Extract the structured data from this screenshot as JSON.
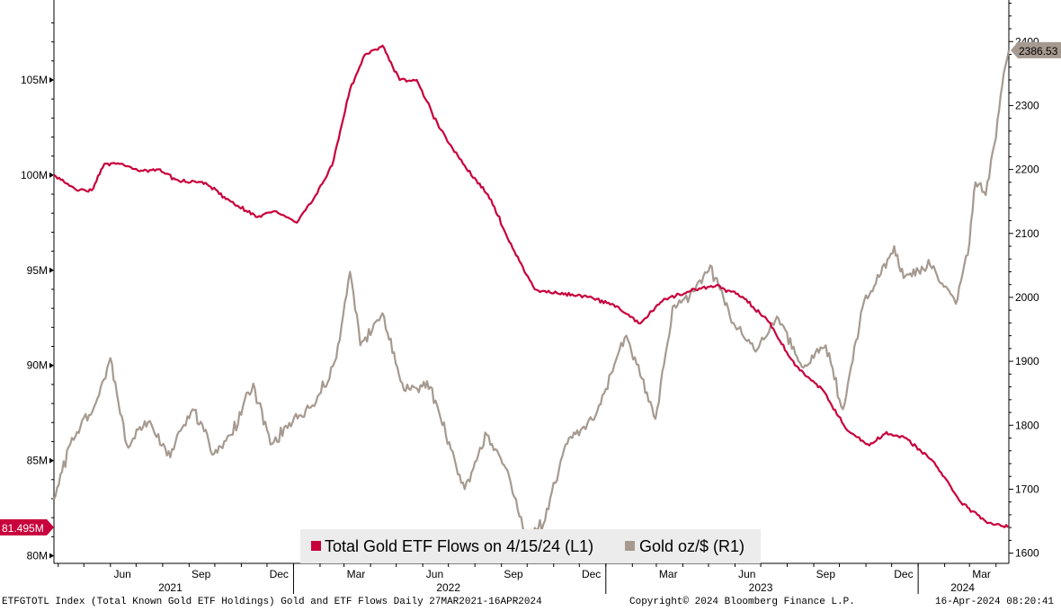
{
  "chart_data": {
    "type": "line",
    "x_range": [
      "2021-03-27",
      "2024-04-16"
    ],
    "x_month_ticks": [
      "Jun",
      "Sep",
      "Dec",
      "Mar",
      "Jun",
      "Sep",
      "Dec",
      "Mar",
      "Jun",
      "Sep",
      "Dec",
      "Mar"
    ],
    "x_year_labels": [
      "2021",
      "2022",
      "2023",
      "2024"
    ],
    "y_left": {
      "ticks": [
        "80M",
        "85M",
        "90M",
        "95M",
        "100M",
        "105M"
      ],
      "ylim": [
        79.6,
        109.2
      ]
    },
    "y_right": {
      "ticks": [
        "1600",
        "1700",
        "1800",
        "1900",
        "2000",
        "2100",
        "2200",
        "2300",
        "2400"
      ],
      "ylim": [
        1584,
        2465
      ]
    },
    "series": [
      {
        "name": "Total Gold ETF Flows on 4/15/24 (L1)",
        "axis": "left",
        "color": "#c8003c",
        "last_value_label": "81.495M",
        "points": [
          [
            "2021-03-27",
            100.0
          ],
          [
            "2021-04-20",
            99.3
          ],
          [
            "2021-05-10",
            99.2
          ],
          [
            "2021-05-25",
            100.6
          ],
          [
            "2021-06-15",
            100.6
          ],
          [
            "2021-07-05",
            100.2
          ],
          [
            "2021-07-25",
            100.3
          ],
          [
            "2021-08-20",
            99.7
          ],
          [
            "2021-09-20",
            99.6
          ],
          [
            "2021-10-20",
            98.6
          ],
          [
            "2021-11-20",
            97.8
          ],
          [
            "2021-12-10",
            98.1
          ],
          [
            "2022-01-05",
            97.5
          ],
          [
            "2022-01-25",
            98.8
          ],
          [
            "2022-02-15",
            100.5
          ],
          [
            "2022-03-08",
            104.5
          ],
          [
            "2022-03-25",
            106.3
          ],
          [
            "2022-04-15",
            106.8
          ],
          [
            "2022-05-05",
            105.0
          ],
          [
            "2022-05-25",
            105.0
          ],
          [
            "2022-06-20",
            102.5
          ],
          [
            "2022-07-20",
            100.5
          ],
          [
            "2022-08-20",
            98.7
          ],
          [
            "2022-09-10",
            96.5
          ],
          [
            "2022-10-10",
            94.0
          ],
          [
            "2022-11-05",
            93.8
          ],
          [
            "2022-12-10",
            93.6
          ],
          [
            "2023-01-10",
            93.2
          ],
          [
            "2023-02-10",
            92.2
          ],
          [
            "2023-03-10",
            93.5
          ],
          [
            "2023-04-10",
            93.9
          ],
          [
            "2023-05-10",
            94.2
          ],
          [
            "2023-06-10",
            93.6
          ],
          [
            "2023-07-10",
            92.3
          ],
          [
            "2023-08-10",
            90.0
          ],
          [
            "2023-09-10",
            88.8
          ],
          [
            "2023-10-10",
            86.6
          ],
          [
            "2023-11-05",
            85.8
          ],
          [
            "2023-11-25",
            86.5
          ],
          [
            "2023-12-20",
            86.1
          ],
          [
            "2024-01-20",
            84.9
          ],
          [
            "2024-02-20",
            82.8
          ],
          [
            "2024-03-20",
            81.8
          ],
          [
            "2024-04-15",
            81.495
          ]
        ]
      },
      {
        "name": "Gold oz/$ (R1)",
        "axis": "right",
        "color": "#a69a90",
        "last_value_label": "2386.53",
        "points": [
          [
            "2021-03-27",
            1684
          ],
          [
            "2021-04-15",
            1770
          ],
          [
            "2021-05-15",
            1835
          ],
          [
            "2021-06-01",
            1905
          ],
          [
            "2021-06-20",
            1770
          ],
          [
            "2021-07-15",
            1805
          ],
          [
            "2021-08-10",
            1750
          ],
          [
            "2021-08-20",
            1790
          ],
          [
            "2021-09-05",
            1825
          ],
          [
            "2021-09-30",
            1755
          ],
          [
            "2021-10-20",
            1785
          ],
          [
            "2021-11-15",
            1865
          ],
          [
            "2021-12-05",
            1770
          ],
          [
            "2021-12-31",
            1805
          ],
          [
            "2022-01-25",
            1830
          ],
          [
            "2022-02-20",
            1905
          ],
          [
            "2022-03-08",
            2040
          ],
          [
            "2022-03-20",
            1925
          ],
          [
            "2022-04-15",
            1975
          ],
          [
            "2022-05-10",
            1855
          ],
          [
            "2022-06-10",
            1860
          ],
          [
            "2022-07-20",
            1700
          ],
          [
            "2022-08-15",
            1785
          ],
          [
            "2022-09-10",
            1720
          ],
          [
            "2022-09-28",
            1630
          ],
          [
            "2022-10-20",
            1645
          ],
          [
            "2022-11-15",
            1770
          ],
          [
            "2022-12-20",
            1815
          ],
          [
            "2023-01-25",
            1940
          ],
          [
            "2023-02-28",
            1810
          ],
          [
            "2023-03-20",
            1985
          ],
          [
            "2023-04-15",
            2010
          ],
          [
            "2023-05-03",
            2050
          ],
          [
            "2023-05-30",
            1960
          ],
          [
            "2023-06-25",
            1915
          ],
          [
            "2023-07-20",
            1970
          ],
          [
            "2023-08-20",
            1890
          ],
          [
            "2023-09-15",
            1925
          ],
          [
            "2023-10-05",
            1825
          ],
          [
            "2023-10-30",
            1995
          ],
          [
            "2023-12-04",
            2080
          ],
          [
            "2023-12-15",
            2030
          ],
          [
            "2024-01-15",
            2050
          ],
          [
            "2024-02-14",
            1990
          ],
          [
            "2024-03-01",
            2085
          ],
          [
            "2024-03-08",
            2180
          ],
          [
            "2024-03-20",
            2160
          ],
          [
            "2024-04-01",
            2250
          ],
          [
            "2024-04-10",
            2350
          ],
          [
            "2024-04-16",
            2386.53
          ]
        ]
      }
    ],
    "legend": "bottom-center"
  },
  "footer": {
    "left": "ETFGTOTL Index (Total Known Gold ETF Holdings) Gold and ETF Flows  Daily 27MAR2021-16APR2024",
    "center": "Copyright© 2024 Bloomberg Finance L.P.",
    "right": "16-Apr-2024 08:20:41"
  }
}
